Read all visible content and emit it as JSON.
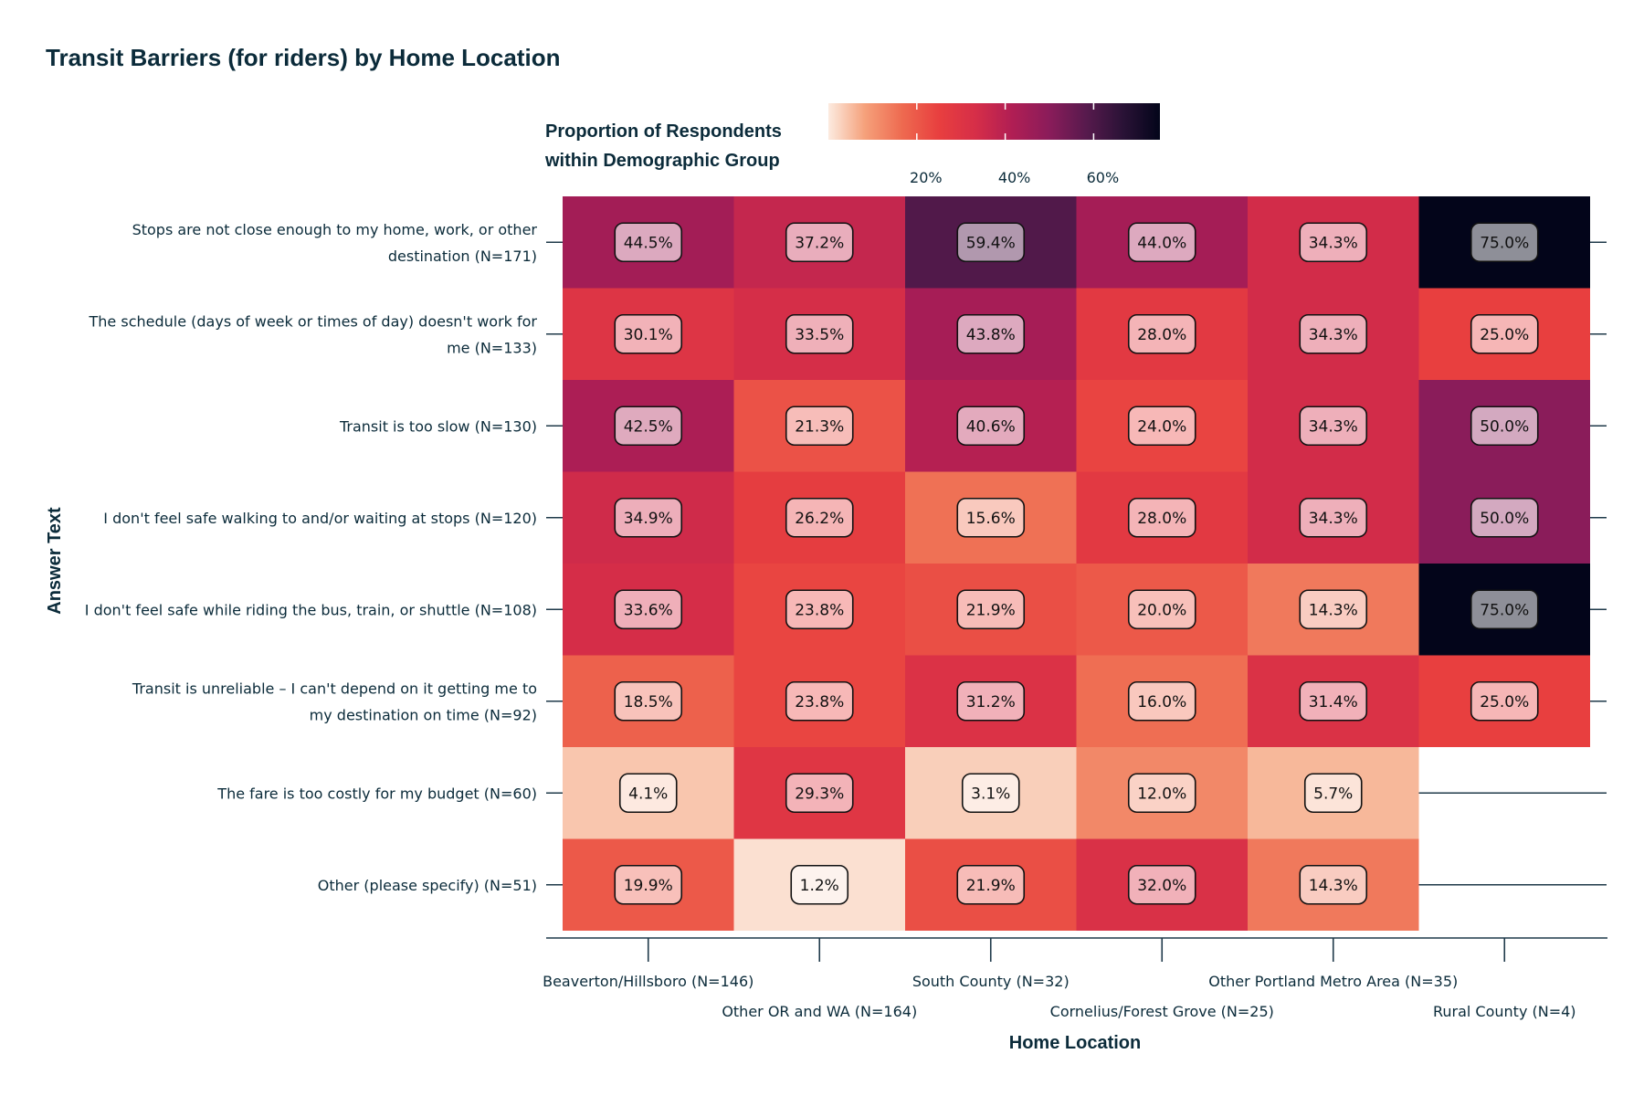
{
  "chart_data": {
    "type": "heatmap",
    "title": "Transit Barriers (for riders) by Home Location",
    "xlabel": "Home Location",
    "ylabel": "Answer Text",
    "legend": {
      "title_lines": [
        "Proportion of Respondents",
        "within Demographic Group"
      ],
      "ticks": [
        "20%",
        "40%",
        "60%"
      ],
      "tick_values": [
        0.2,
        0.4,
        0.6
      ],
      "range": [
        0.0,
        0.75
      ],
      "position": "top"
    },
    "columns": [
      "Beaverton/Hillsboro (N=146)",
      "Other OR and WA (N=164)",
      "South County (N=32)",
      "Cornelius/Forest Grove (N=25)",
      "Other Portland Metro Area (N=35)",
      "Rural County (N=4)"
    ],
    "rows": [
      [
        "Stops are not close enough to my home, work, or other",
        "destination (N=171)"
      ],
      [
        "The schedule (days of week or times of day) doesn't work for",
        "me (N=133)"
      ],
      [
        "Transit is too slow (N=130)"
      ],
      [
        "I don't feel safe walking to and/or waiting at stops (N=120)"
      ],
      [
        "I don't feel safe while riding the bus, train, or shuttle (N=108)"
      ],
      [
        "Transit is unreliable – I can't depend on it getting me to",
        "my destination on time (N=92)"
      ],
      [
        "The fare is too costly for my budget (N=60)"
      ],
      [
        "Other (please specify) (N=51)"
      ]
    ],
    "values": [
      [
        0.445,
        0.372,
        0.594,
        0.44,
        0.343,
        0.75
      ],
      [
        0.301,
        0.335,
        0.438,
        0.28,
        0.343,
        0.25
      ],
      [
        0.425,
        0.213,
        0.406,
        0.24,
        0.343,
        0.5
      ],
      [
        0.349,
        0.262,
        0.156,
        0.28,
        0.343,
        0.5
      ],
      [
        0.336,
        0.238,
        0.219,
        0.2,
        0.143,
        0.75
      ],
      [
        0.185,
        0.238,
        0.312,
        0.16,
        0.314,
        0.25
      ],
      [
        0.041,
        0.293,
        0.031,
        0.12,
        0.057,
        null
      ],
      [
        0.199,
        0.012,
        0.219,
        0.32,
        0.143,
        null
      ]
    ],
    "labels": [
      [
        "44.5%",
        "37.2%",
        "59.4%",
        "44.0%",
        "34.3%",
        "75.0%"
      ],
      [
        "30.1%",
        "33.5%",
        "43.8%",
        "28.0%",
        "34.3%",
        "25.0%"
      ],
      [
        "42.5%",
        "21.3%",
        "40.6%",
        "24.0%",
        "34.3%",
        "50.0%"
      ],
      [
        "34.9%",
        "26.2%",
        "15.6%",
        "28.0%",
        "34.3%",
        "50.0%"
      ],
      [
        "33.6%",
        "23.8%",
        "21.9%",
        "20.0%",
        "14.3%",
        "75.0%"
      ],
      [
        "18.5%",
        "23.8%",
        "31.2%",
        "16.0%",
        "31.4%",
        "25.0%"
      ],
      [
        "4.1%",
        "29.3%",
        "3.1%",
        "12.0%",
        "5.7%",
        null
      ],
      [
        "19.9%",
        "1.2%",
        "21.9%",
        "32.0%",
        "14.3%",
        null
      ]
    ],
    "colors": {
      "scale": [
        "#fcebe0",
        "#f5a07a",
        "#ee6a50",
        "#e83f3f",
        "#d62e48",
        "#b01e54",
        "#8a1c5a",
        "#571a4d",
        "#2a1236",
        "#03051a"
      ],
      "axis": "#1f3a4a",
      "text": "#0b2b3a"
    }
  }
}
